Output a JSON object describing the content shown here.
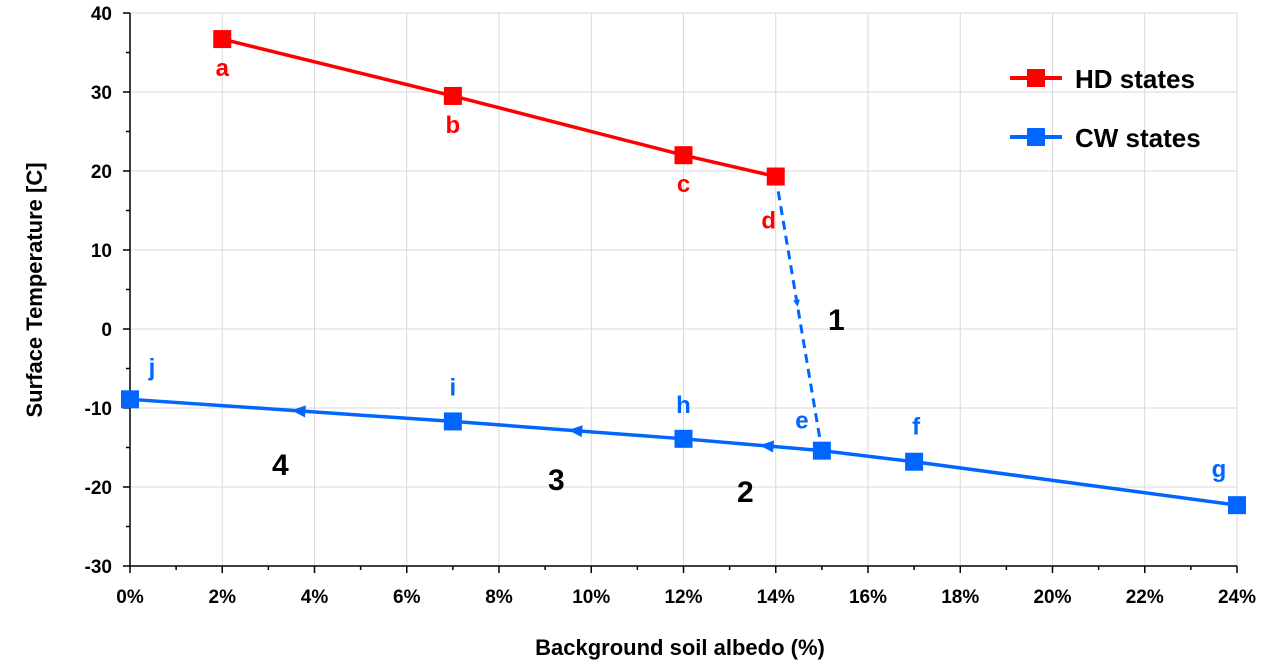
{
  "chart_data": {
    "type": "line",
    "xlabel": "Background soil albedo (%)",
    "ylabel": "Surface  Temperature [C]",
    "xlim": [
      0,
      24
    ],
    "ylim": [
      -30,
      40
    ],
    "x_ticks": [
      "0%",
      "2%",
      "4%",
      "6%",
      "8%",
      "10%",
      "12%",
      "14%",
      "16%",
      "18%",
      "20%",
      "22%",
      "24%"
    ],
    "y_ticks": [
      "-30",
      "-20",
      "-10",
      "0",
      "10",
      "20",
      "30",
      "40"
    ],
    "grid": true,
    "legend_position": "top-right",
    "series": [
      {
        "name": "HD states",
        "color": "#ff0000",
        "points": [
          {
            "x": 2,
            "y": 36.7,
            "label": "a"
          },
          {
            "x": 7,
            "y": 29.5,
            "label": "b"
          },
          {
            "x": 12,
            "y": 22.0,
            "label": "c"
          },
          {
            "x": 14,
            "y": 19.3,
            "label": "d"
          }
        ]
      },
      {
        "name": "CW states",
        "color": "#0066ff",
        "points": [
          {
            "x": 0,
            "y": -8.9,
            "label": "j"
          },
          {
            "x": 7,
            "y": -11.7,
            "label": "i"
          },
          {
            "x": 12,
            "y": -13.9,
            "label": "h"
          },
          {
            "x": 15,
            "y": -15.4,
            "label": "e"
          },
          {
            "x": 17,
            "y": -16.8,
            "label": "f"
          },
          {
            "x": 24,
            "y": -22.3,
            "label": "g"
          }
        ]
      }
    ],
    "transitions": [
      {
        "label": "1",
        "from": {
          "x": 14,
          "y": 19.3
        },
        "to": {
          "x": 15,
          "y": -15.4
        },
        "style": "dashed"
      }
    ],
    "annotations": [
      "1",
      "2",
      "3",
      "4"
    ]
  }
}
